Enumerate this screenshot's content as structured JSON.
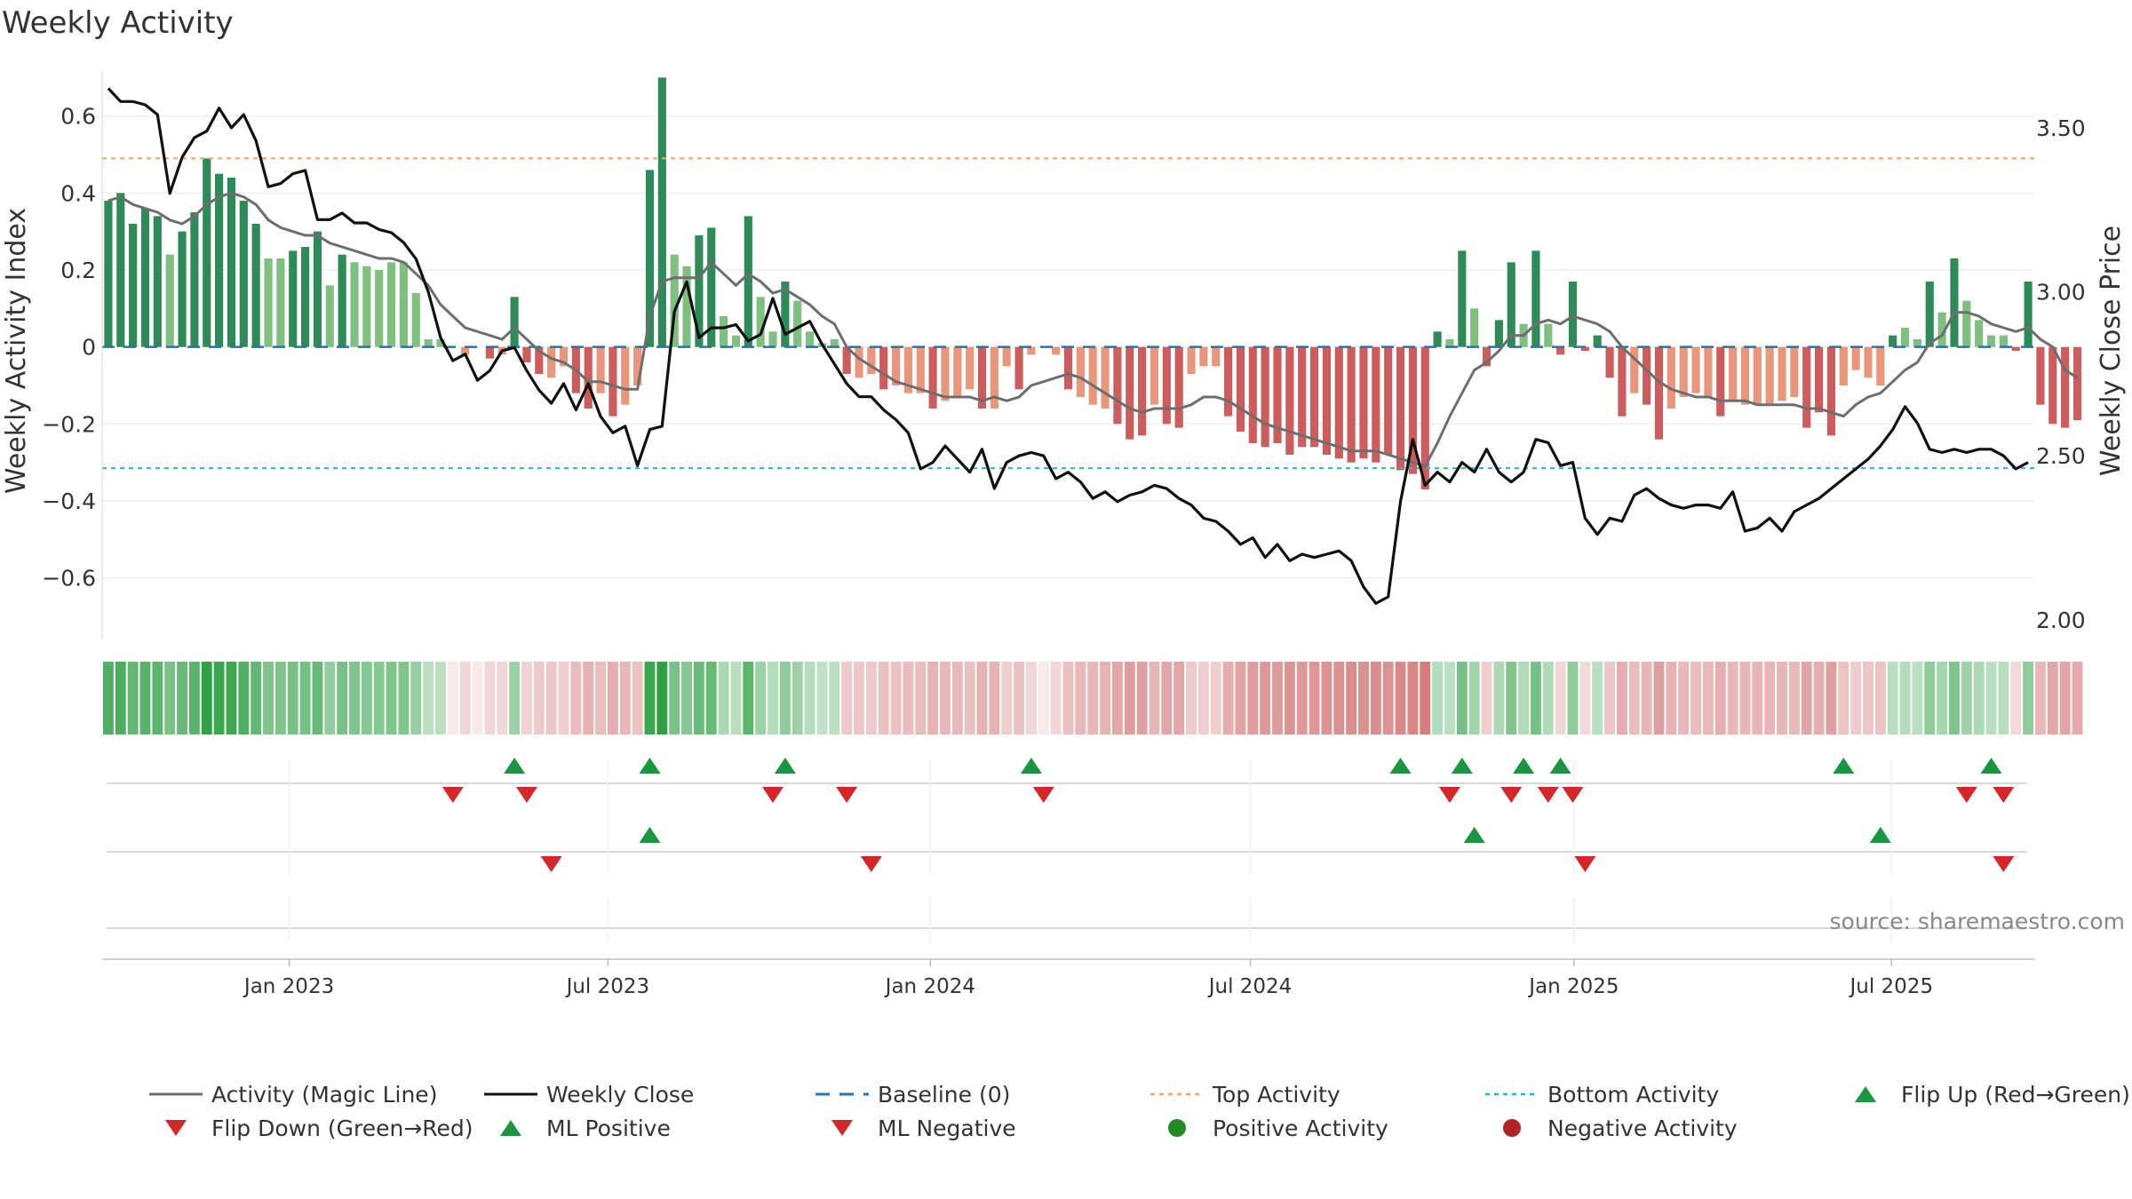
{
  "chart_data": {
    "type": "bar",
    "title": "Weekly Activity",
    "ylabel_left": "Weekly Activity Index",
    "ylabel_right": "Weekly Close Price",
    "source": "source: sharemaestro.com",
    "y_left_range": [
      -0.76,
      0.74
    ],
    "y_right_range": [
      1.94,
      3.7
    ],
    "y_left_ticks": [
      {
        "v": 0.6,
        "label": "0.6"
      },
      {
        "v": 0.4,
        "label": "0.4"
      },
      {
        "v": 0.2,
        "label": "0.2"
      },
      {
        "v": 0,
        "label": "0"
      },
      {
        "v": -0.2,
        "label": "−0.2"
      },
      {
        "v": -0.4,
        "label": "−0.4"
      },
      {
        "v": -0.6,
        "label": "−0.6"
      }
    ],
    "y_right_ticks": [
      {
        "v": 3.5,
        "label": "3.50"
      },
      {
        "v": 3.0,
        "label": "3.00"
      },
      {
        "v": 2.5,
        "label": "2.50"
      },
      {
        "v": 2.0,
        "label": "2.00"
      }
    ],
    "x_range_weeks": [
      0,
      157
    ],
    "x_ticks": [
      {
        "w": 15.2,
        "label": "Jan 2023"
      },
      {
        "w": 41.1,
        "label": "Jul 2023"
      },
      {
        "w": 67.3,
        "label": "Jan 2024"
      },
      {
        "w": 93.3,
        "label": "Jul 2024"
      },
      {
        "w": 119.6,
        "label": "Jan 2025"
      },
      {
        "w": 145.4,
        "label": "Jul 2025"
      }
    ],
    "top_activity": 0.49,
    "bottom_activity": -0.315,
    "activity_bars": [
      0.38,
      0.4,
      0.32,
      0.36,
      0.34,
      0.24,
      0.3,
      0.35,
      0.49,
      0.45,
      0.44,
      0.38,
      0.32,
      0.23,
      0.23,
      0.25,
      0.26,
      0.3,
      0.16,
      0.24,
      0.22,
      0.21,
      0.2,
      0.22,
      0.22,
      0.14,
      0.02,
      0.02,
      0.0,
      -0.02,
      0.0,
      -0.03,
      -0.02,
      0.13,
      -0.04,
      -0.07,
      -0.08,
      -0.05,
      -0.12,
      -0.16,
      -0.12,
      -0.18,
      -0.15,
      -0.1,
      0.46,
      0.7,
      0.24,
      0.21,
      0.29,
      0.31,
      0.08,
      0.03,
      0.34,
      0.13,
      0.04,
      0.17,
      0.12,
      0.04,
      0.01,
      0.02,
      -0.07,
      -0.08,
      -0.07,
      -0.11,
      -0.1,
      -0.12,
      -0.12,
      -0.16,
      -0.14,
      -0.13,
      -0.11,
      -0.16,
      -0.16,
      -0.05,
      -0.11,
      -0.02,
      0.0,
      -0.02,
      -0.11,
      -0.13,
      -0.15,
      -0.16,
      -0.2,
      -0.24,
      -0.23,
      -0.15,
      -0.2,
      -0.21,
      -0.07,
      -0.05,
      -0.05,
      -0.18,
      -0.22,
      -0.25,
      -0.26,
      -0.25,
      -0.28,
      -0.26,
      -0.26,
      -0.28,
      -0.29,
      -0.3,
      -0.29,
      -0.3,
      -0.28,
      -0.32,
      -0.33,
      -0.37,
      0.04,
      0.02,
      0.25,
      0.1,
      -0.05,
      0.07,
      0.22,
      0.06,
      0.25,
      0.06,
      -0.02,
      0.17,
      -0.01,
      0.03,
      -0.08,
      -0.18,
      -0.12,
      -0.15,
      -0.24,
      -0.16,
      -0.13,
      -0.12,
      -0.13,
      -0.18,
      -0.14,
      -0.15,
      -0.15,
      -0.15,
      -0.14,
      -0.13,
      -0.21,
      -0.17,
      -0.23,
      -0.1,
      -0.06,
      -0.08,
      -0.1,
      0.03,
      0.05,
      0.02,
      0.17,
      0.09,
      0.23,
      0.12,
      0.07,
      0.03,
      0.03,
      -0.01,
      0.17,
      -0.15,
      -0.2,
      -0.21,
      -0.19
    ],
    "magic_line": [
      0.38,
      0.39,
      0.37,
      0.36,
      0.35,
      0.33,
      0.32,
      0.34,
      0.37,
      0.39,
      0.4,
      0.39,
      0.37,
      0.33,
      0.31,
      0.3,
      0.29,
      0.29,
      0.27,
      0.26,
      0.25,
      0.24,
      0.23,
      0.23,
      0.22,
      0.19,
      0.16,
      0.11,
      0.08,
      0.05,
      0.04,
      0.03,
      0.02,
      0.05,
      0.02,
      -0.01,
      -0.03,
      -0.04,
      -0.06,
      -0.09,
      -0.09,
      -0.1,
      -0.11,
      -0.11,
      0.08,
      0.17,
      0.18,
      0.18,
      0.18,
      0.22,
      0.19,
      0.16,
      0.19,
      0.17,
      0.14,
      0.15,
      0.13,
      0.11,
      0.08,
      0.06,
      0.0,
      -0.03,
      -0.05,
      -0.07,
      -0.09,
      -0.1,
      -0.11,
      -0.12,
      -0.13,
      -0.13,
      -0.13,
      -0.14,
      -0.13,
      -0.14,
      -0.13,
      -0.1,
      -0.09,
      -0.08,
      -0.07,
      -0.08,
      -0.1,
      -0.12,
      -0.14,
      -0.16,
      -0.17,
      -0.16,
      -0.16,
      -0.16,
      -0.15,
      -0.13,
      -0.13,
      -0.14,
      -0.16,
      -0.18,
      -0.2,
      -0.21,
      -0.22,
      -0.23,
      -0.24,
      -0.25,
      -0.26,
      -0.27,
      -0.27,
      -0.27,
      -0.28,
      -0.29,
      -0.3,
      -0.31,
      -0.25,
      -0.18,
      -0.12,
      -0.06,
      -0.04,
      -0.01,
      0.03,
      0.03,
      0.06,
      0.07,
      0.06,
      0.08,
      0.07,
      0.06,
      0.04,
      0.0,
      -0.03,
      -0.06,
      -0.09,
      -0.11,
      -0.12,
      -0.13,
      -0.13,
      -0.14,
      -0.14,
      -0.14,
      -0.15,
      -0.15,
      -0.15,
      -0.15,
      -0.16,
      -0.16,
      -0.17,
      -0.18,
      -0.15,
      -0.13,
      -0.12,
      -0.09,
      -0.06,
      -0.04,
      0.01,
      0.03,
      0.09,
      0.09,
      0.08,
      0.06,
      0.05,
      0.04,
      0.05,
      0.02,
      0.0,
      -0.06,
      -0.08
    ],
    "weekly_close": [
      3.62,
      3.58,
      3.58,
      3.57,
      3.54,
      3.3,
      3.41,
      3.47,
      3.49,
      3.56,
      3.5,
      3.54,
      3.46,
      3.32,
      3.33,
      3.36,
      3.37,
      3.22,
      3.22,
      3.24,
      3.21,
      3.21,
      3.19,
      3.18,
      3.15,
      3.1,
      3.0,
      2.86,
      2.79,
      2.81,
      2.73,
      2.76,
      2.82,
      2.83,
      2.76,
      2.7,
      2.66,
      2.72,
      2.64,
      2.72,
      2.62,
      2.57,
      2.59,
      2.47,
      2.58,
      2.59,
      2.94,
      3.03,
      2.86,
      2.89,
      2.89,
      2.9,
      2.85,
      2.87,
      2.98,
      2.87,
      2.89,
      2.91,
      2.84,
      2.78,
      2.72,
      2.68,
      2.68,
      2.64,
      2.61,
      2.57,
      2.46,
      2.48,
      2.53,
      2.49,
      2.45,
      2.52,
      2.4,
      2.48,
      2.5,
      2.51,
      2.5,
      2.43,
      2.45,
      2.42,
      2.37,
      2.39,
      2.36,
      2.38,
      2.39,
      2.41,
      2.4,
      2.37,
      2.35,
      2.31,
      2.3,
      2.27,
      2.23,
      2.25,
      2.19,
      2.23,
      2.18,
      2.2,
      2.19,
      2.2,
      2.21,
      2.18,
      2.1,
      2.05,
      2.07,
      2.36,
      2.55,
      2.41,
      2.45,
      2.42,
      2.48,
      2.45,
      2.52,
      2.45,
      2.42,
      2.45,
      2.55,
      2.54,
      2.47,
      2.48,
      2.31,
      2.26,
      2.31,
      2.3,
      2.38,
      2.4,
      2.37,
      2.35,
      2.34,
      2.35,
      2.35,
      2.34,
      2.39,
      2.27,
      2.28,
      2.31,
      2.27,
      2.33,
      2.35,
      2.37,
      2.4,
      2.43,
      2.46,
      2.49,
      2.53,
      2.58,
      2.65,
      2.6,
      2.52,
      2.51,
      2.52,
      2.51,
      2.52,
      2.52,
      2.5,
      2.46,
      2.48
    ],
    "activity_strip": [
      0.38,
      0.4,
      0.32,
      0.36,
      0.34,
      0.24,
      0.3,
      0.35,
      0.49,
      0.45,
      0.44,
      0.38,
      0.32,
      0.23,
      0.23,
      0.25,
      0.26,
      0.3,
      0.16,
      0.24,
      0.22,
      0.21,
      0.2,
      0.22,
      0.22,
      0.14,
      0.02,
      0.02,
      0.0,
      -0.02,
      0.0,
      -0.03,
      -0.02,
      0.13,
      -0.04,
      -0.07,
      -0.08,
      -0.05,
      -0.12,
      -0.16,
      -0.12,
      -0.18,
      -0.15,
      -0.1,
      0.46,
      0.7,
      0.24,
      0.21,
      0.29,
      0.31,
      0.08,
      0.03,
      0.34,
      0.13,
      0.04,
      0.17,
      0.12,
      0.04,
      0.01,
      0.02,
      -0.07,
      -0.08,
      -0.07,
      -0.11,
      -0.1,
      -0.12,
      -0.12,
      -0.16,
      -0.14,
      -0.13,
      -0.11,
      -0.16,
      -0.16,
      -0.05,
      -0.11,
      -0.02,
      0.0,
      -0.02,
      -0.11,
      -0.13,
      -0.15,
      -0.16,
      -0.2,
      -0.24,
      -0.23,
      -0.15,
      -0.2,
      -0.21,
      -0.07,
      -0.05,
      -0.05,
      -0.18,
      -0.22,
      -0.25,
      -0.26,
      -0.25,
      -0.28,
      -0.26,
      -0.26,
      -0.28,
      -0.29,
      -0.3,
      -0.29,
      -0.3,
      -0.28,
      -0.32,
      -0.33,
      -0.37,
      0.04,
      0.02,
      0.25,
      0.1,
      -0.05,
      0.07,
      0.22,
      0.06,
      0.25,
      0.06,
      -0.02,
      0.17,
      -0.01,
      0.03,
      -0.08,
      -0.18,
      -0.12,
      -0.15,
      -0.24,
      -0.16,
      -0.13,
      -0.12,
      -0.13,
      -0.18,
      -0.14,
      -0.15,
      -0.15,
      -0.15,
      -0.14,
      -0.13,
      -0.21,
      -0.17,
      -0.23,
      -0.1,
      -0.06,
      -0.08,
      -0.1,
      0.03,
      0.05,
      0.02,
      0.17,
      0.09,
      0.23,
      0.12,
      0.07,
      0.03,
      0.03,
      -0.01,
      0.17,
      -0.15,
      -0.2,
      -0.21,
      -0.19
    ],
    "flip_up_weeks": [
      33.5,
      44.5,
      55.5,
      75.5,
      105.5,
      110.5,
      115.5,
      118.5,
      141.5,
      153.5
    ],
    "flip_down_weeks": [
      28.5,
      34.5,
      54.5,
      60.5,
      76.5,
      109.5,
      114.5,
      117.5,
      119.5,
      151.5,
      154.5
    ],
    "ml_positive_weeks": [
      44.5,
      111.5,
      144.5
    ],
    "ml_negative_weeks": [
      36.5,
      62.5,
      120.5,
      154.5
    ],
    "positive_activity_weeks": [],
    "negative_activity_weeks": [],
    "colors": {
      "strong_green": "#2e8b57",
      "light_green": "#7fbf7f",
      "strong_red": "#cd5c5c",
      "light_red": "#e9967a",
      "magic_line": "#6e6e6e",
      "close": "#111111",
      "baseline": "#1f77b4",
      "top": "#f4a460",
      "bottom": "#17becf",
      "marker_green": "#1a9641",
      "marker_red": "#d62728",
      "dot_green": "#228b22",
      "dot_red": "#b22222"
    },
    "legend": [
      {
        "key": "magic",
        "label": "Activity (Magic Line)"
      },
      {
        "key": "close",
        "label": "Weekly Close"
      },
      {
        "key": "baseline",
        "label": "Baseline (0)"
      },
      {
        "key": "top",
        "label": "Top Activity"
      },
      {
        "key": "bottom",
        "label": "Bottom Activity"
      },
      {
        "key": "flipup",
        "label": "Flip Up (Red→Green)"
      },
      {
        "key": "flipdown",
        "label": "Flip Down (Green→Red)"
      },
      {
        "key": "mlpos",
        "label": "ML Positive"
      },
      {
        "key": "mlneg",
        "label": "ML Negative"
      },
      {
        "key": "posact",
        "label": "Positive Activity"
      },
      {
        "key": "negact",
        "label": "Negative Activity"
      }
    ]
  }
}
